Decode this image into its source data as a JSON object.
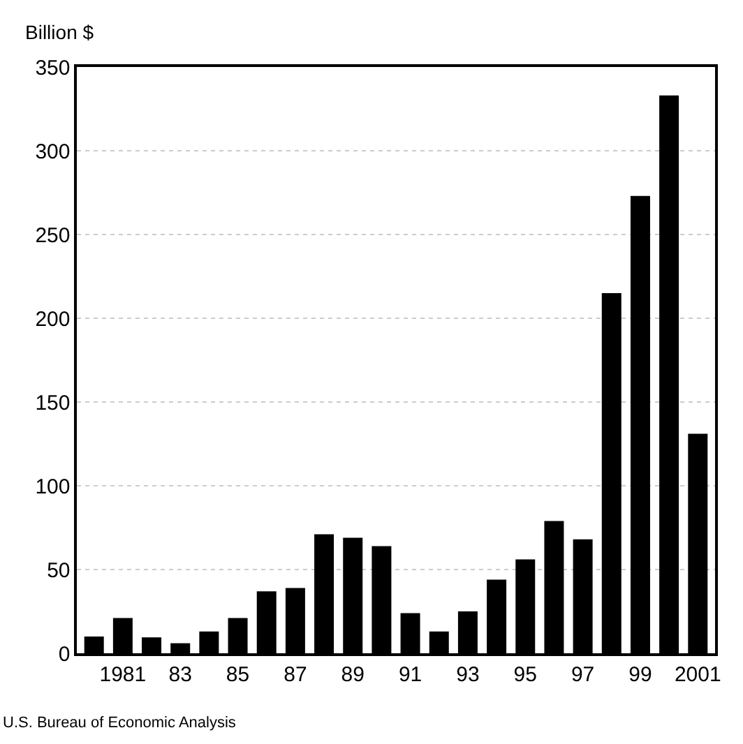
{
  "chart_data": {
    "type": "bar",
    "ylabel": "Billion $",
    "categories": [
      null,
      "1981",
      null,
      "83",
      null,
      "85",
      null,
      "87",
      null,
      "89",
      null,
      "91",
      null,
      "93",
      null,
      "95",
      null,
      "97",
      null,
      "99",
      null,
      "2001"
    ],
    "values": [
      10,
      21,
      9.5,
      6,
      13,
      21,
      37,
      39,
      71,
      69,
      64,
      24,
      13,
      25,
      44,
      56,
      79,
      68,
      215,
      273,
      333,
      131
    ],
    "color": "#000000",
    "ylim": [
      0,
      350
    ],
    "yticks": [
      0,
      50,
      100,
      150,
      200,
      250,
      300,
      350
    ],
    "grid": "y",
    "annotations": [
      "U.S. Bureau of Economic Analysis"
    ]
  }
}
